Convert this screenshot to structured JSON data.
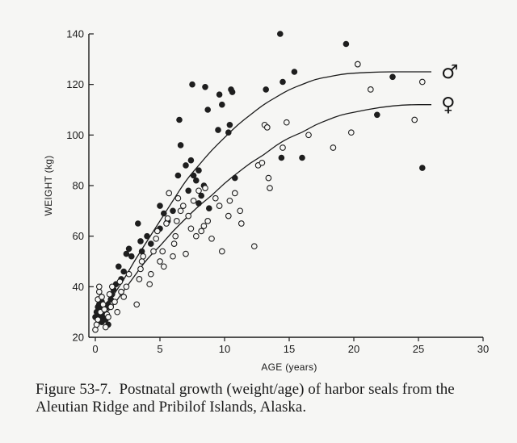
{
  "figure": {
    "caption_label": "Figure 53-7.",
    "caption_text": "Postnatal growth (weight/age) of harbor seals from the Aleutian Ridge and Pribilof Islands, Alaska."
  },
  "chart_data": {
    "type": "scatter",
    "xlabel": "AGE (years)",
    "ylabel": "WEIGHT (kg)",
    "xlim": [
      0,
      30
    ],
    "ylim": [
      20,
      140
    ],
    "xticks": [
      0,
      5,
      10,
      15,
      20,
      25,
      30
    ],
    "yticks": [
      20,
      40,
      60,
      80,
      100,
      120,
      140
    ],
    "grid": false,
    "legend": "curve-end labels (right)",
    "series": [
      {
        "name": "♂",
        "marker": "filled-circle",
        "color": "#1e1e1e",
        "points": [
          [
            0.0,
            28
          ],
          [
            0.1,
            30
          ],
          [
            0.2,
            32
          ],
          [
            0.2,
            27
          ],
          [
            0.3,
            29
          ],
          [
            0.3,
            33
          ],
          [
            0.4,
            31
          ],
          [
            0.5,
            26
          ],
          [
            0.5,
            34
          ],
          [
            0.6,
            28
          ],
          [
            0.7,
            30
          ],
          [
            0.8,
            27
          ],
          [
            0.9,
            32
          ],
          [
            1.0,
            25
          ],
          [
            1.0,
            33
          ],
          [
            1.2,
            35
          ],
          [
            1.3,
            37
          ],
          [
            1.4,
            39
          ],
          [
            1.6,
            41
          ],
          [
            1.8,
            48
          ],
          [
            2.0,
            43
          ],
          [
            2.2,
            46
          ],
          [
            2.4,
            53
          ],
          [
            2.6,
            55
          ],
          [
            2.8,
            52
          ],
          [
            3.3,
            65
          ],
          [
            3.5,
            58
          ],
          [
            3.6,
            54
          ],
          [
            4.0,
            60
          ],
          [
            4.3,
            57
          ],
          [
            5.0,
            72
          ],
          [
            5.0,
            63
          ],
          [
            5.3,
            69
          ],
          [
            5.6,
            66
          ],
          [
            6.0,
            70
          ],
          [
            6.4,
            84
          ],
          [
            6.5,
            106
          ],
          [
            6.6,
            96
          ],
          [
            7.0,
            88
          ],
          [
            7.2,
            78
          ],
          [
            7.4,
            90
          ],
          [
            7.5,
            120
          ],
          [
            7.6,
            84
          ],
          [
            7.8,
            82
          ],
          [
            8.0,
            86
          ],
          [
            8.0,
            73
          ],
          [
            8.2,
            76
          ],
          [
            8.4,
            80
          ],
          [
            8.5,
            119
          ],
          [
            8.7,
            110
          ],
          [
            8.8,
            71
          ],
          [
            9.5,
            102
          ],
          [
            9.6,
            116
          ],
          [
            9.8,
            112
          ],
          [
            10.3,
            101
          ],
          [
            10.4,
            104
          ],
          [
            10.5,
            118
          ],
          [
            10.6,
            117
          ],
          [
            10.8,
            83
          ],
          [
            13.2,
            118
          ],
          [
            14.3,
            140
          ],
          [
            14.4,
            91
          ],
          [
            14.5,
            121
          ],
          [
            15.4,
            125
          ],
          [
            16.0,
            91
          ],
          [
            19.4,
            136
          ],
          [
            20.3,
            128
          ],
          [
            21.8,
            108
          ],
          [
            23.0,
            123
          ],
          [
            25.3,
            87
          ]
        ]
      },
      {
        "name": "♀",
        "marker": "open-circle",
        "color": "#1e1e1e",
        "points": [
          [
            0.0,
            23
          ],
          [
            0.1,
            25
          ],
          [
            0.2,
            27
          ],
          [
            0.2,
            35
          ],
          [
            0.3,
            38
          ],
          [
            0.3,
            40
          ],
          [
            0.4,
            30
          ],
          [
            0.5,
            36
          ],
          [
            0.6,
            33
          ],
          [
            0.7,
            31
          ],
          [
            0.8,
            24
          ],
          [
            0.9,
            29
          ],
          [
            1.0,
            28
          ],
          [
            1.1,
            37
          ],
          [
            1.2,
            32
          ],
          [
            1.3,
            40
          ],
          [
            1.5,
            34
          ],
          [
            1.7,
            30
          ],
          [
            1.9,
            42
          ],
          [
            2.0,
            38
          ],
          [
            2.2,
            36
          ],
          [
            2.4,
            40
          ],
          [
            2.6,
            45
          ],
          [
            3.2,
            33
          ],
          [
            3.4,
            43
          ],
          [
            3.5,
            47
          ],
          [
            3.6,
            50
          ],
          [
            3.7,
            52
          ],
          [
            4.2,
            41
          ],
          [
            4.3,
            45
          ],
          [
            4.5,
            54
          ],
          [
            4.7,
            59
          ],
          [
            4.8,
            62
          ],
          [
            5.0,
            50
          ],
          [
            5.2,
            54
          ],
          [
            5.3,
            48
          ],
          [
            5.5,
            65
          ],
          [
            5.6,
            67
          ],
          [
            5.7,
            77
          ],
          [
            6.0,
            52
          ],
          [
            6.1,
            57
          ],
          [
            6.2,
            60
          ],
          [
            6.3,
            66
          ],
          [
            6.4,
            75
          ],
          [
            6.6,
            70
          ],
          [
            6.8,
            72
          ],
          [
            7.0,
            53
          ],
          [
            7.2,
            68
          ],
          [
            7.4,
            63
          ],
          [
            7.6,
            74
          ],
          [
            7.8,
            60
          ],
          [
            8.0,
            78
          ],
          [
            8.2,
            62
          ],
          [
            8.4,
            64
          ],
          [
            8.5,
            79
          ],
          [
            8.7,
            66
          ],
          [
            9.0,
            59
          ],
          [
            9.3,
            75
          ],
          [
            9.6,
            72
          ],
          [
            9.8,
            54
          ],
          [
            10.3,
            68
          ],
          [
            10.4,
            74
          ],
          [
            10.8,
            77
          ],
          [
            11.2,
            70
          ],
          [
            11.3,
            65
          ],
          [
            12.3,
            56
          ],
          [
            12.6,
            88
          ],
          [
            12.9,
            89
          ],
          [
            13.1,
            104
          ],
          [
            13.3,
            103
          ],
          [
            13.4,
            83
          ],
          [
            13.5,
            79
          ],
          [
            14.5,
            95
          ],
          [
            14.8,
            105
          ],
          [
            16.5,
            100
          ],
          [
            18.4,
            95
          ],
          [
            19.8,
            101
          ],
          [
            20.3,
            128
          ],
          [
            21.3,
            118
          ],
          [
            24.7,
            106
          ],
          [
            25.3,
            121
          ]
        ]
      }
    ],
    "fitted_curves": [
      {
        "name": "♂",
        "points": [
          [
            0,
            30
          ],
          [
            1,
            34
          ],
          [
            2,
            41
          ],
          [
            3,
            50
          ],
          [
            4,
            58
          ],
          [
            5,
            66
          ],
          [
            6,
            74
          ],
          [
            7,
            82
          ],
          [
            8,
            88
          ],
          [
            9,
            94
          ],
          [
            10,
            99
          ],
          [
            11,
            104
          ],
          [
            12,
            108
          ],
          [
            13,
            112
          ],
          [
            14,
            115
          ],
          [
            15,
            118
          ],
          [
            16,
            120
          ],
          [
            17,
            122
          ],
          [
            18,
            123
          ],
          [
            19,
            124
          ],
          [
            20,
            124.5
          ],
          [
            22,
            125
          ],
          [
            24,
            125
          ],
          [
            26,
            125
          ]
        ]
      },
      {
        "name": "♀",
        "points": [
          [
            0,
            27
          ],
          [
            1,
            30
          ],
          [
            2,
            37
          ],
          [
            3,
            44
          ],
          [
            4,
            51
          ],
          [
            5,
            56
          ],
          [
            6,
            62
          ],
          [
            7,
            67
          ],
          [
            8,
            72
          ],
          [
            9,
            76
          ],
          [
            10,
            81
          ],
          [
            11,
            85
          ],
          [
            12,
            89
          ],
          [
            13,
            92
          ],
          [
            14,
            96
          ],
          [
            15,
            99
          ],
          [
            16,
            101
          ],
          [
            17,
            104
          ],
          [
            18,
            106
          ],
          [
            19,
            108
          ],
          [
            20,
            109
          ],
          [
            22,
            111
          ],
          [
            24,
            112
          ],
          [
            26,
            112
          ]
        ]
      }
    ]
  }
}
